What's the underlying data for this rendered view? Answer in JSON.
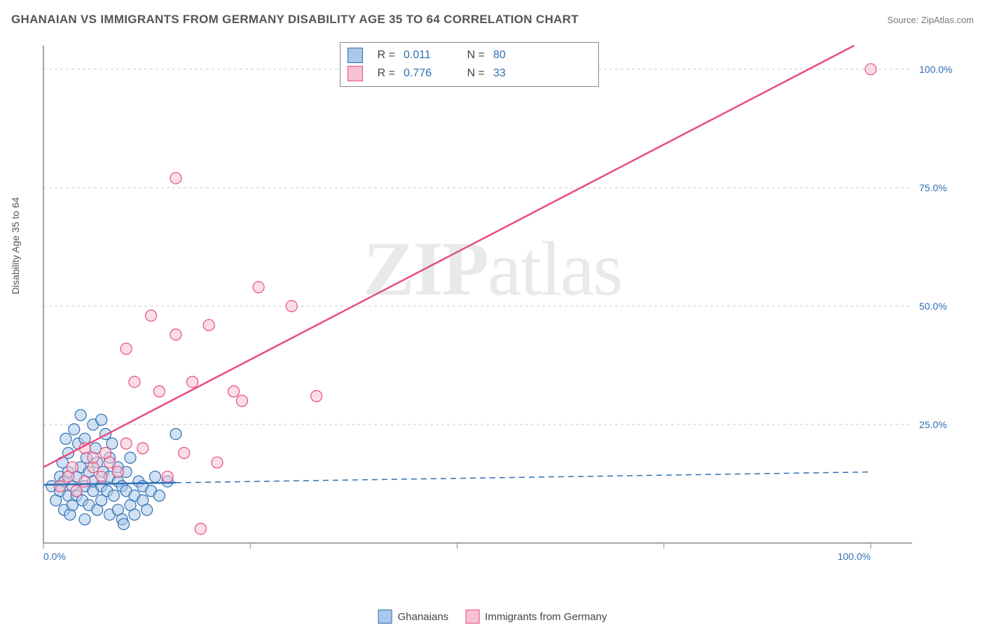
{
  "title": "GHANAIAN VS IMMIGRANTS FROM GERMANY DISABILITY AGE 35 TO 64 CORRELATION CHART",
  "source_label": "Source: ZipAtlas.com",
  "ylabel": "Disability Age 35 to 64",
  "watermark_a": "ZIP",
  "watermark_b": "atlas",
  "chart": {
    "type": "scatter",
    "xlim": [
      0,
      105
    ],
    "ylim": [
      0,
      105
    ],
    "x_ticks": [
      0,
      25,
      50,
      75,
      100
    ],
    "y_ticks": [
      25,
      50,
      75,
      100
    ],
    "x_tick_labels": [
      "0.0%",
      "",
      "",
      "",
      "100.0%"
    ],
    "y_tick_labels": [
      "25.0%",
      "50.0%",
      "75.0%",
      "100.0%"
    ],
    "grid_color": "#cccccc",
    "axis_color": "#888888",
    "tick_label_color": "#2f6fb3",
    "background": "#ffffff",
    "marker_radius": 8,
    "marker_opacity": 0.55,
    "line_width": 2.5,
    "series": [
      {
        "name": "Ghanaians",
        "fill": "#a9c8ea",
        "stroke": "#2f6fb3",
        "r_value": "0.011",
        "n_value": "80",
        "trend": {
          "x1": 0,
          "y1": 12.3,
          "x2": 100,
          "y2": 15.0,
          "solid_until": 16
        },
        "points": [
          [
            1,
            12
          ],
          [
            1.5,
            9
          ],
          [
            2,
            14
          ],
          [
            2,
            11
          ],
          [
            2.3,
            17
          ],
          [
            2.5,
            7
          ],
          [
            2.5,
            13
          ],
          [
            2.7,
            22
          ],
          [
            3,
            10
          ],
          [
            3,
            15
          ],
          [
            3,
            19
          ],
          [
            3.2,
            6
          ],
          [
            3.5,
            12
          ],
          [
            3.5,
            8
          ],
          [
            3.7,
            24
          ],
          [
            4,
            14
          ],
          [
            4,
            10
          ],
          [
            4.2,
            21
          ],
          [
            4.5,
            27
          ],
          [
            4.5,
            16
          ],
          [
            4.7,
            9
          ],
          [
            5,
            12
          ],
          [
            5,
            22
          ],
          [
            5,
            5
          ],
          [
            5.2,
            18
          ],
          [
            5.5,
            15
          ],
          [
            5.5,
            8
          ],
          [
            6,
            11
          ],
          [
            6,
            13
          ],
          [
            6,
            25
          ],
          [
            6.3,
            20
          ],
          [
            6.5,
            7
          ],
          [
            6.5,
            17
          ],
          [
            7,
            26
          ],
          [
            7,
            12
          ],
          [
            7,
            9
          ],
          [
            7.2,
            15
          ],
          [
            7.5,
            23
          ],
          [
            7.7,
            11
          ],
          [
            8,
            18
          ],
          [
            8,
            6
          ],
          [
            8,
            14
          ],
          [
            8.3,
            21
          ],
          [
            8.5,
            10
          ],
          [
            9,
            13
          ],
          [
            9,
            16
          ],
          [
            9,
            7
          ],
          [
            9.5,
            5
          ],
          [
            9.5,
            12
          ],
          [
            9.7,
            4
          ],
          [
            10,
            11
          ],
          [
            10,
            15
          ],
          [
            10.5,
            8
          ],
          [
            10.5,
            18
          ],
          [
            11,
            6
          ],
          [
            11,
            10
          ],
          [
            11.5,
            13
          ],
          [
            12,
            9
          ],
          [
            12,
            12
          ],
          [
            12.5,
            7
          ],
          [
            13,
            11
          ],
          [
            13.5,
            14
          ],
          [
            14,
            10
          ],
          [
            15,
            13
          ],
          [
            16,
            23
          ]
        ]
      },
      {
        "name": "Immigrants from Germany",
        "fill": "#f6c2d2",
        "stroke": "#e94c7f",
        "r_value": "0.776",
        "n_value": "33",
        "trend": {
          "x1": 0,
          "y1": 16,
          "x2": 98,
          "y2": 105,
          "solid_until": 98
        },
        "points": [
          [
            2,
            12
          ],
          [
            3,
            14
          ],
          [
            3.5,
            16
          ],
          [
            4,
            11
          ],
          [
            5,
            13
          ],
          [
            5,
            20
          ],
          [
            6,
            16
          ],
          [
            6,
            18
          ],
          [
            7,
            14
          ],
          [
            7.5,
            19
          ],
          [
            8,
            17
          ],
          [
            9,
            15
          ],
          [
            10,
            21
          ],
          [
            10,
            41
          ],
          [
            11,
            34
          ],
          [
            12,
            20
          ],
          [
            13,
            48
          ],
          [
            14,
            32
          ],
          [
            15,
            14
          ],
          [
            16,
            44
          ],
          [
            17,
            19
          ],
          [
            18,
            34
          ],
          [
            19,
            3
          ],
          [
            20,
            46
          ],
          [
            21,
            17
          ],
          [
            16,
            77
          ],
          [
            23,
            32
          ],
          [
            24,
            30
          ],
          [
            26,
            54
          ],
          [
            30,
            50
          ],
          [
            33,
            31
          ],
          [
            100,
            100
          ]
        ]
      }
    ]
  },
  "legend_top": {
    "r_label": "R  =",
    "n_label": "N  ="
  },
  "legend_bottom": {
    "items": [
      "Ghanaians",
      "Immigrants from Germany"
    ]
  }
}
